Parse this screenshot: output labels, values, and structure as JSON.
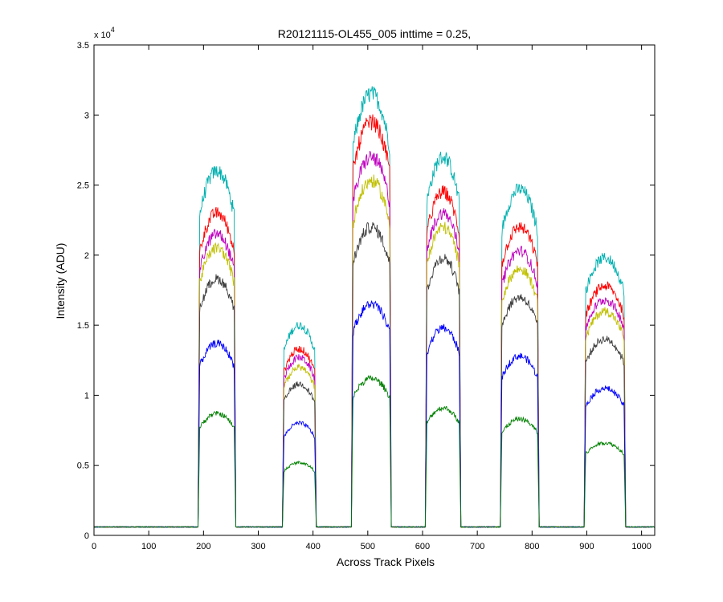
{
  "chart_data": {
    "type": "line",
    "title": "R20121115-OL455_005 inttime = 0.25,",
    "xlabel": "Across Track Pixels",
    "ylabel": "Intensity (ADU)",
    "y_exponent_label": "x 10",
    "y_exponent_power": "4",
    "xlim": [
      0,
      1024
    ],
    "ylim": [
      0,
      35000
    ],
    "x_ticks": [
      0,
      100,
      200,
      300,
      400,
      500,
      600,
      700,
      800,
      900,
      1000
    ],
    "y_ticks": [
      0,
      5000,
      10000,
      15000,
      20000,
      25000,
      30000,
      35000
    ],
    "x_tick_labels": [
      "0",
      "100",
      "200",
      "300",
      "400",
      "500",
      "600",
      "700",
      "800",
      "900",
      "1000"
    ],
    "y_tick_labels": [
      "0",
      "0.5",
      "1",
      "1.5",
      "2",
      "2.5",
      "3",
      "3.5"
    ],
    "grid": false,
    "baseline": 600,
    "bands": [
      {
        "start": 193,
        "end": 256
      },
      {
        "start": 347,
        "end": 403
      },
      {
        "start": 473,
        "end": 540
      },
      {
        "start": 608,
        "end": 667
      },
      {
        "start": 745,
        "end": 810
      },
      {
        "start": 898,
        "end": 968
      }
    ],
    "series": [
      {
        "color": "#00b0b0",
        "peaks": [
          26000,
          15000,
          31500,
          27000,
          24700,
          19800
        ]
      },
      {
        "color": "#ff0000",
        "peaks": [
          23000,
          13300,
          29500,
          24500,
          22000,
          17800
        ]
      },
      {
        "color": "#c000c0",
        "peaks": [
          21500,
          12700,
          27000,
          23000,
          20300,
          16800
        ]
      },
      {
        "color": "#c0c000",
        "peaks": [
          20500,
          12000,
          25300,
          22000,
          19000,
          16000
        ]
      },
      {
        "color": "#404040",
        "peaks": [
          18300,
          10800,
          22000,
          19800,
          17000,
          14000
        ]
      },
      {
        "color": "#0000ff",
        "peaks": [
          13700,
          8000,
          16500,
          14800,
          12800,
          10500
        ]
      },
      {
        "color": "#008000",
        "peaks": [
          8700,
          5200,
          11200,
          9100,
          8300,
          6600
        ]
      }
    ]
  }
}
